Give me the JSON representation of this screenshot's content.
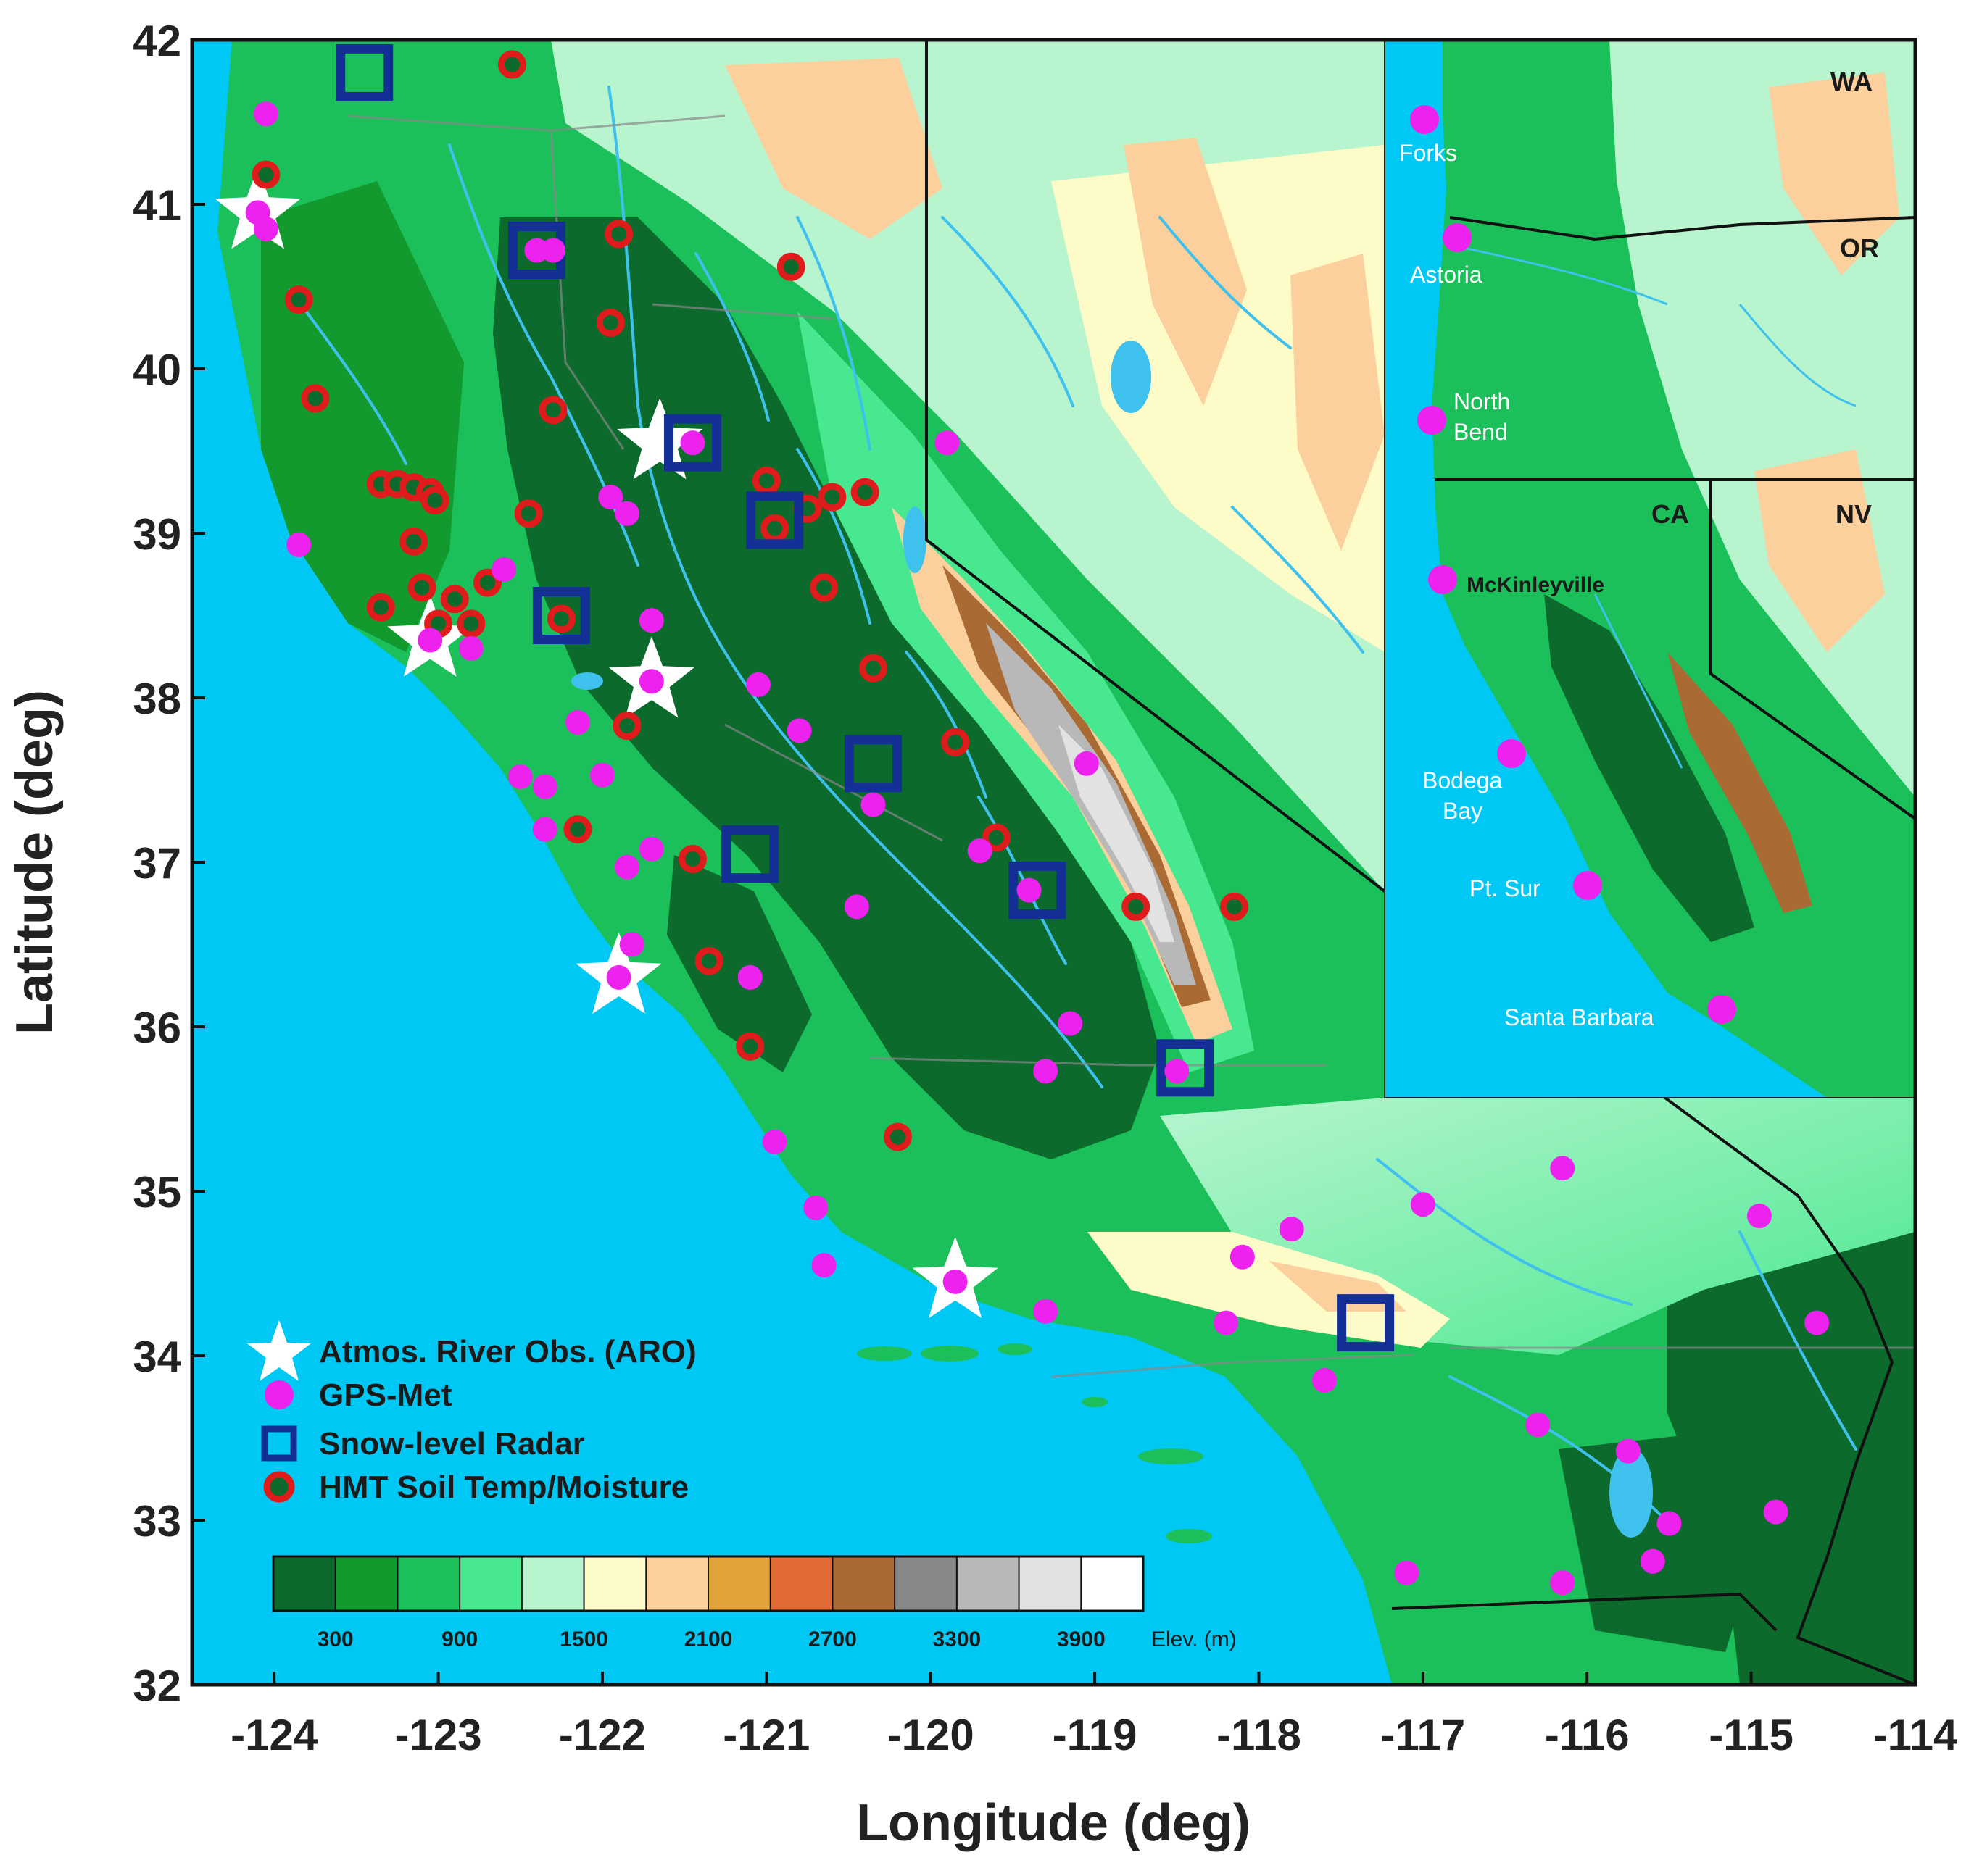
{
  "axes": {
    "xlabel": "Longitude (deg)",
    "ylabel": "Latitude (deg)",
    "xlim": [
      -124.5,
      -114
    ],
    "ylim": [
      32,
      42
    ],
    "xticks": [
      -124,
      -123,
      -122,
      -121,
      -120,
      -119,
      -118,
      -117,
      -116,
      -115,
      -114
    ],
    "yticks": [
      32,
      33,
      34,
      35,
      36,
      37,
      38,
      39,
      40,
      41,
      42
    ]
  },
  "legend": {
    "position": "bottom-left",
    "items": [
      {
        "label": "Atmos. River Obs. (ARO)",
        "icon": "star-icon"
      },
      {
        "label": "GPS-Met",
        "icon": "magenta-dot-icon"
      },
      {
        "label": "Snow-level Radar",
        "icon": "blue-square-icon"
      },
      {
        "label": "HMT Soil Temp/Moisture",
        "icon": "red-ring-icon"
      }
    ]
  },
  "elevation_scale": {
    "unit_label": "Elev. (m)",
    "tick_labels": [
      "300",
      "900",
      "1500",
      "2100",
      "2700",
      "3300",
      "3900"
    ],
    "colors": [
      "#0b6a2c",
      "#129a2e",
      "#1cc05a",
      "#48e890",
      "#b8f5cf",
      "#fdfbc8",
      "#fbd09c",
      "#e2a23a",
      "#e06a35",
      "#a96a34",
      "#888888",
      "#b8b8b8",
      "#e2e2e2",
      "#ffffff"
    ]
  },
  "inset": {
    "state_labels": [
      "WA",
      "OR",
      "CA",
      "NV"
    ],
    "station_labels": [
      "Forks",
      "Astoria",
      "North",
      "Bend",
      "McKinleyville",
      "Bodega",
      "Bay",
      "Pt. Sur",
      "Santa Barbara"
    ]
  },
  "colors": {
    "ocean": "#00c8f5",
    "gps_met": "#ee22ee",
    "snow_radar": "#142f96",
    "soil_ring": "#e01b1b",
    "aro_star": "#ffffff",
    "river": "#3fc1ee"
  },
  "chart_data": {
    "type": "scatter",
    "xlabel": "Longitude (deg)",
    "ylabel": "Latitude (deg)",
    "xlim": [
      -124.5,
      -114
    ],
    "ylim": [
      32,
      42
    ],
    "series": [
      {
        "name": "Atmos. River Obs. (ARO)",
        "points": [
          [
            -124.1,
            40.95
          ],
          [
            -121.65,
            39.55
          ],
          [
            -123.05,
            38.35
          ],
          [
            -121.7,
            38.1
          ],
          [
            -121.9,
            36.3
          ],
          [
            -119.85,
            34.45
          ]
        ]
      },
      {
        "name": "GPS-Met",
        "points": [
          [
            -124.05,
            41.55
          ],
          [
            -124.1,
            40.95
          ],
          [
            -124.05,
            40.85
          ],
          [
            -122.4,
            40.72
          ],
          [
            -122.3,
            40.72
          ],
          [
            -119.9,
            39.55
          ],
          [
            -121.45,
            39.55
          ],
          [
            -121.95,
            39.22
          ],
          [
            -121.85,
            39.12
          ],
          [
            -123.85,
            38.93
          ],
          [
            -122.6,
            38.78
          ],
          [
            -123.05,
            38.35
          ],
          [
            -122.8,
            38.3
          ],
          [
            -121.7,
            38.1
          ],
          [
            -121.7,
            38.47
          ],
          [
            -121.05,
            38.08
          ],
          [
            -122.15,
            37.85
          ],
          [
            -120.8,
            37.8
          ],
          [
            -122.5,
            37.52
          ],
          [
            -122.35,
            37.46
          ],
          [
            -122.0,
            37.53
          ],
          [
            -119.05,
            37.6
          ],
          [
            -120.35,
            37.35
          ],
          [
            -122.35,
            37.2
          ],
          [
            -121.7,
            37.08
          ],
          [
            -119.7,
            37.07
          ],
          [
            -121.85,
            36.97
          ],
          [
            -119.4,
            36.83
          ],
          [
            -120.45,
            36.73
          ],
          [
            -121.82,
            36.5
          ],
          [
            -121.9,
            36.3
          ],
          [
            -121.1,
            36.3
          ],
          [
            -119.15,
            36.02
          ],
          [
            -119.3,
            35.73
          ],
          [
            -118.5,
            35.73
          ],
          [
            -120.95,
            35.3
          ],
          [
            -120.7,
            34.9
          ],
          [
            -120.65,
            34.55
          ],
          [
            -119.85,
            34.45
          ],
          [
            -119.3,
            34.27
          ],
          [
            -118.2,
            34.2
          ],
          [
            -118.1,
            34.6
          ],
          [
            -117.8,
            34.77
          ],
          [
            -117.0,
            34.92
          ],
          [
            -116.15,
            35.14
          ],
          [
            -114.95,
            34.85
          ],
          [
            -114.6,
            34.2
          ],
          [
            -117.6,
            33.85
          ],
          [
            -116.3,
            33.58
          ],
          [
            -115.75,
            33.42
          ],
          [
            -115.5,
            32.98
          ],
          [
            -114.85,
            33.05
          ],
          [
            -115.6,
            32.75
          ],
          [
            -116.15,
            32.62
          ],
          [
            -117.1,
            32.68
          ]
        ]
      },
      {
        "name": "Snow-level Radar",
        "points": [
          [
            -123.45,
            41.8
          ],
          [
            -122.4,
            40.72
          ],
          [
            -121.45,
            39.55
          ],
          [
            -120.95,
            39.08
          ],
          [
            -122.25,
            38.5
          ],
          [
            -120.35,
            37.6
          ],
          [
            -121.1,
            37.05
          ],
          [
            -119.35,
            36.83
          ],
          [
            -118.45,
            35.75
          ],
          [
            -117.35,
            34.2
          ]
        ]
      },
      {
        "name": "HMT Soil Temp/Moisture",
        "points": [
          [
            -122.55,
            41.85
          ],
          [
            -124.05,
            41.18
          ],
          [
            -121.9,
            40.82
          ],
          [
            -120.85,
            40.62
          ],
          [
            -123.85,
            40.42
          ],
          [
            -121.95,
            40.28
          ],
          [
            -123.75,
            39.82
          ],
          [
            -122.3,
            39.75
          ],
          [
            -123.35,
            39.3
          ],
          [
            -123.25,
            39.3
          ],
          [
            -123.15,
            39.28
          ],
          [
            -123.05,
            39.25
          ],
          [
            -123.02,
            39.2
          ],
          [
            -121.0,
            39.32
          ],
          [
            -120.95,
            39.03
          ],
          [
            -120.75,
            39.15
          ],
          [
            -120.6,
            39.22
          ],
          [
            -120.4,
            39.25
          ],
          [
            -122.45,
            39.12
          ],
          [
            -123.15,
            38.95
          ],
          [
            -120.65,
            38.67
          ],
          [
            -123.1,
            38.67
          ],
          [
            -122.9,
            38.6
          ],
          [
            -122.7,
            38.7
          ],
          [
            -123.35,
            38.55
          ],
          [
            -123.0,
            38.45
          ],
          [
            -122.8,
            38.45
          ],
          [
            -122.25,
            38.48
          ],
          [
            -120.35,
            38.18
          ],
          [
            -121.85,
            37.83
          ],
          [
            -119.85,
            37.73
          ],
          [
            -119.6,
            37.15
          ],
          [
            -122.15,
            37.2
          ],
          [
            -121.45,
            37.02
          ],
          [
            -118.75,
            36.73
          ],
          [
            -118.15,
            36.73
          ],
          [
            -121.35,
            36.4
          ],
          [
            -121.1,
            35.88
          ],
          [
            -120.2,
            35.33
          ]
        ]
      }
    ]
  }
}
